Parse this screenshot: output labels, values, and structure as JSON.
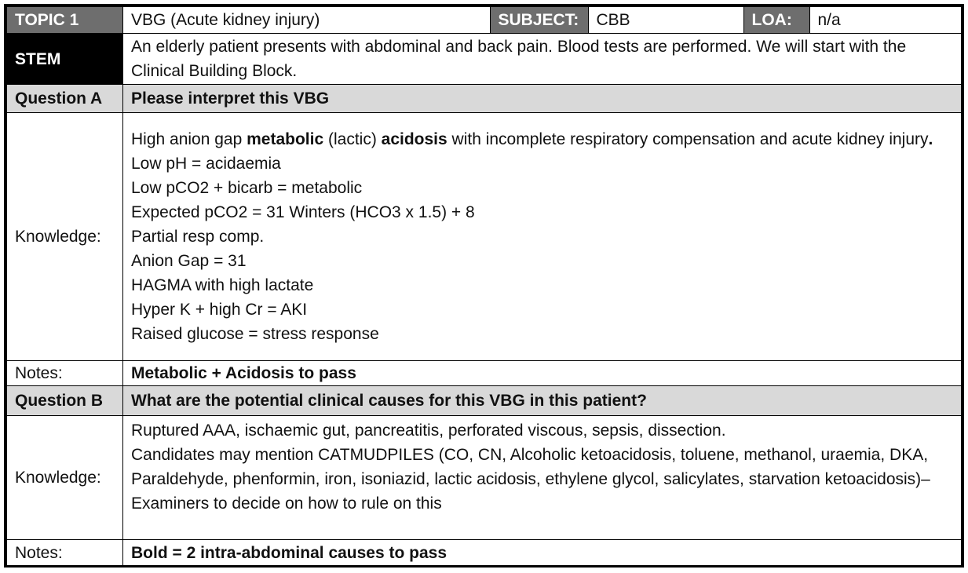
{
  "header": {
    "topic_label": "TOPIC 1",
    "topic_value": "VBG (Acute kidney injury)",
    "subject_label": "SUBJECT:",
    "subject_value": "CBB",
    "loa_label": "LOA:",
    "loa_value": "n/a"
  },
  "stem": {
    "label": "STEM",
    "text": "An elderly patient presents with abdominal and back pain. Blood tests are performed. We will start with the Clinical Building Block."
  },
  "question_a": {
    "label": "Question A",
    "prompt": "Please interpret this VBG",
    "knowledge_label": "Knowledge:",
    "knowledge_intro": {
      "p1": "High anion gap ",
      "b1": "metabolic",
      "p2": " (lactic) ",
      "b2": "acidosis",
      "p3": " with incomplete respiratory compensation and acute kidney injury",
      "b3": "."
    },
    "knowledge_lines": [
      "Low pH = acidaemia",
      "Low pCO2 + bicarb = metabolic",
      "Expected pCO2 = 31 Winters (HCO3 x 1.5) + 8",
      "Partial resp comp.",
      "Anion Gap = 31",
      "HAGMA with high lactate",
      "Hyper K + high  Cr = AKI",
      "Raised glucose = stress response"
    ],
    "notes_label": "Notes:",
    "notes_text": "Metabolic + Acidosis to pass"
  },
  "question_b": {
    "label": "Question B",
    "prompt": "What are the potential clinical causes for this VBG in this patient?",
    "knowledge_label": "Knowledge:",
    "knowledge_p1": "Ruptured AAA, ischaemic gut, pancreatitis, perforated viscous, sepsis, dissection.",
    "knowledge_p2": "Candidates may mention CATMUDPILES (CO, CN, Alcoholic ketoacidosis, toluene, methanol, uraemia, DKA, Paraldehyde, phenformin, iron, isoniazid, lactic acidosis, ethylene glycol, salicylates, starvation ketoacidosis)– Examiners to decide on how to rule on this",
    "notes_label": "Notes:",
    "notes_text": "Bold = 2 intra-abdominal causes  to pass"
  }
}
